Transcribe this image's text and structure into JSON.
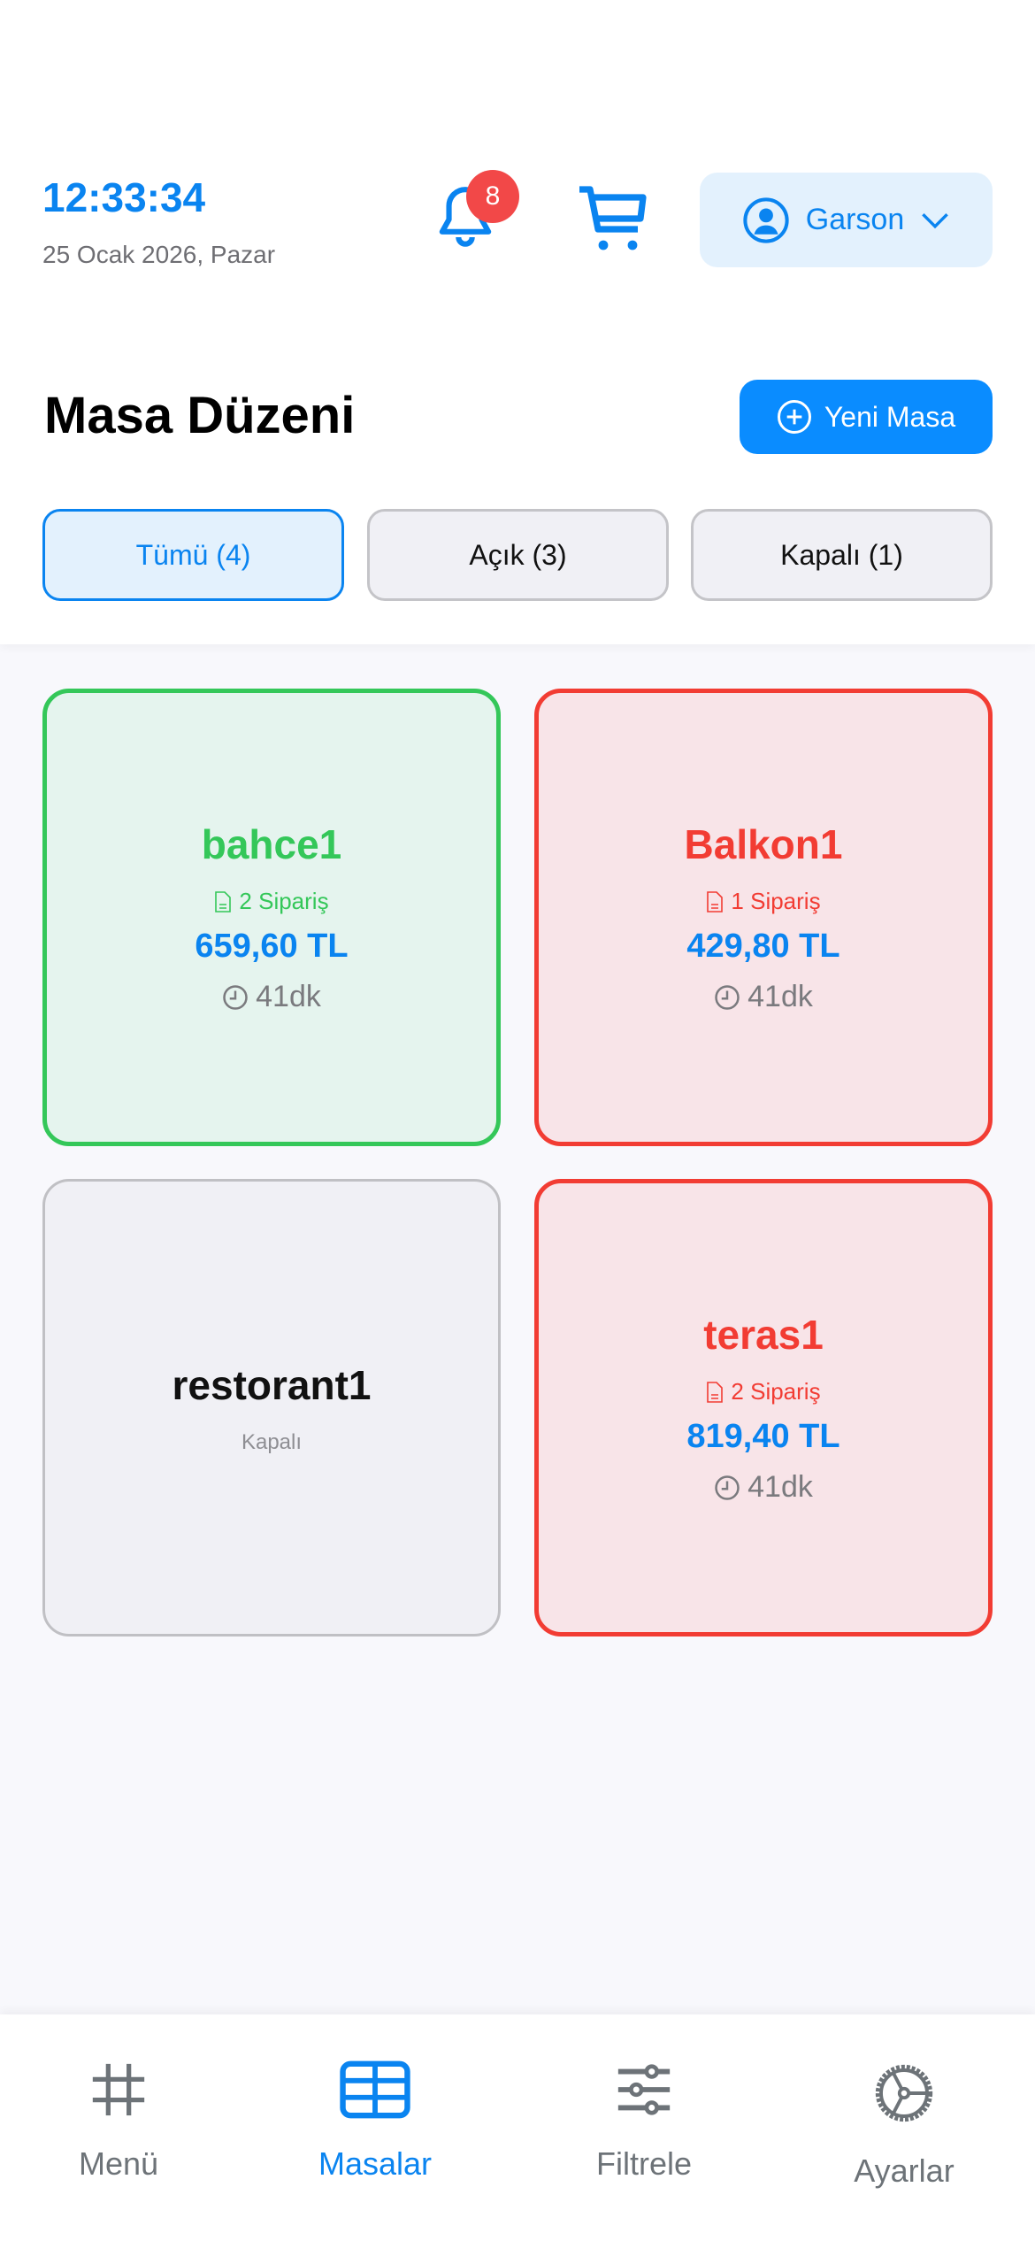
{
  "header": {
    "time": "12:33:34",
    "date": "25 Ocak 2026, Pazar",
    "notification_count": "8",
    "user_label": "Garson"
  },
  "page": {
    "title": "Masa Düzeni",
    "new_table_label": "Yeni Masa"
  },
  "filters": [
    {
      "label": "Tümü (4)",
      "active": true
    },
    {
      "label": "Açık (3)",
      "active": false
    },
    {
      "label": "Kapalı (1)",
      "active": false
    }
  ],
  "tables": [
    {
      "name": "bahce1",
      "orders": "2 Sipariş",
      "total": "659,60 TL",
      "elapsed": "41dk",
      "status": "open",
      "color": "#34c759"
    },
    {
      "name": "Balkon1",
      "orders": "1 Sipariş",
      "total": "429,80 TL",
      "elapsed": "41dk",
      "status": "open",
      "color": "#f23c33"
    },
    {
      "name": "restorant1",
      "status_label": "Kapalı",
      "status": "closed"
    },
    {
      "name": "teras1",
      "orders": "2 Sipariş",
      "total": "819,40 TL",
      "elapsed": "41dk",
      "status": "open",
      "color": "#f23c33"
    }
  ],
  "tabbar": [
    {
      "label": "Menü",
      "icon": "hash-icon"
    },
    {
      "label": "Masalar",
      "icon": "table-icon",
      "active": true
    },
    {
      "label": "Filtrele",
      "icon": "sliders-icon"
    },
    {
      "label": "Ayarlar",
      "icon": "gear-icon"
    }
  ],
  "colors": {
    "accent": "#0a84f0",
    "open_green": "#34c759",
    "open_red": "#f23c33"
  }
}
